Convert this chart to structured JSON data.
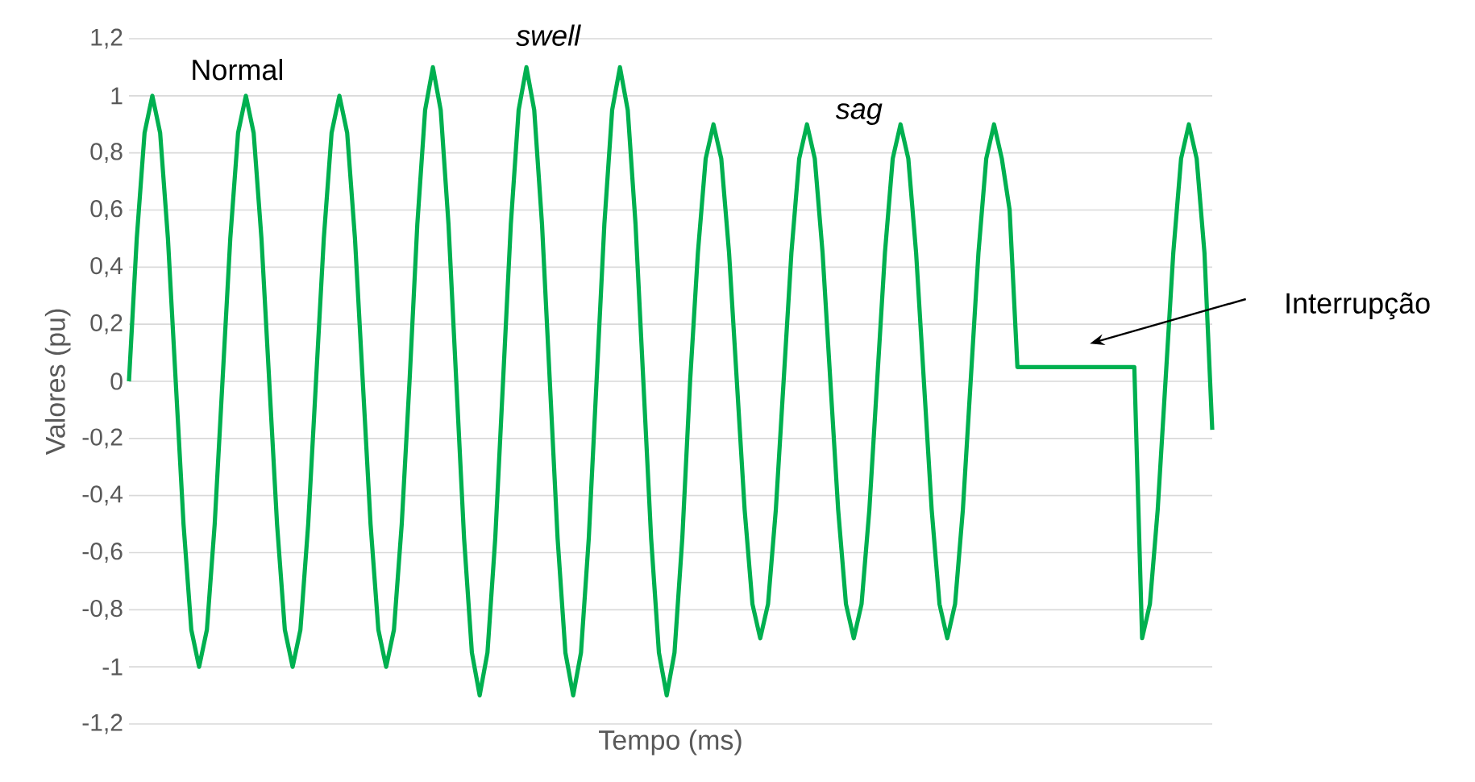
{
  "chart_data": {
    "type": "line",
    "xlabel": "Tempo (ms)",
    "ylabel": "Valores (pu)",
    "annotations": [
      "Normal",
      "swell",
      "sag",
      "Interrupção"
    ],
    "categories": [
      null,
      null,
      null,
      null,
      null,
      null,
      null,
      null,
      null,
      null,
      null,
      null,
      null,
      null,
      null,
      null,
      null,
      null,
      null,
      null,
      null,
      null,
      null,
      null,
      null,
      null,
      null,
      null,
      null,
      null,
      null,
      null,
      null,
      null,
      null,
      null,
      null,
      null,
      null,
      null,
      null,
      null,
      null,
      null,
      null,
      null,
      null,
      null,
      null,
      null,
      null,
      null,
      null,
      null,
      null,
      null,
      null,
      null,
      null,
      null,
      null,
      null,
      null,
      null,
      null,
      null,
      null,
      null,
      null,
      null,
      null,
      null,
      null,
      null,
      null,
      null,
      null,
      null,
      null,
      null,
      null,
      null,
      null,
      null,
      null,
      null,
      null,
      null,
      null,
      null,
      null,
      null,
      null,
      null,
      null,
      null,
      null,
      null,
      null,
      null,
      null,
      null,
      null,
      null,
      null,
      null,
      null,
      null,
      null,
      null,
      null,
      null,
      null,
      null,
      null,
      null,
      null,
      null,
      null,
      null,
      null,
      null,
      null,
      null,
      null,
      null,
      null,
      null,
      null,
      null,
      null,
      null,
      null,
      null,
      null,
      null,
      null,
      null,
      null,
      null
    ],
    "series": [
      {
        "color": "#00b050",
        "values": [
          0,
          0.5,
          0.87,
          1,
          0.87,
          0.5,
          0,
          -0.5,
          -0.87,
          -1,
          -0.87,
          -0.5,
          0,
          0.5,
          0.87,
          1,
          0.87,
          0.5,
          0,
          -0.5,
          -0.87,
          -1,
          -0.87,
          -0.5,
          0,
          0.5,
          0.87,
          1,
          0.87,
          0.5,
          0,
          -0.5,
          -0.87,
          -1,
          -0.87,
          -0.5,
          0,
          0.55,
          0.95,
          1.1,
          0.95,
          0.55,
          0,
          -0.55,
          -0.95,
          -1.1,
          -0.95,
          -0.55,
          0,
          0.55,
          0.95,
          1.1,
          0.95,
          0.55,
          0,
          -0.55,
          -0.95,
          -1.1,
          -0.95,
          -0.55,
          0,
          0.55,
          0.95,
          1.1,
          0.95,
          0.55,
          0,
          -0.55,
          -0.95,
          -1.1,
          -0.95,
          -0.55,
          0,
          0.45,
          0.78,
          0.9,
          0.78,
          0.45,
          0,
          -0.45,
          -0.78,
          -0.9,
          -0.78,
          -0.45,
          0,
          0.45,
          0.78,
          0.9,
          0.78,
          0.45,
          0,
          -0.45,
          -0.78,
          -0.9,
          -0.78,
          -0.45,
          0,
          0.45,
          0.78,
          0.9,
          0.78,
          0.45,
          0,
          -0.45,
          -0.78,
          -0.9,
          -0.78,
          -0.45,
          0,
          0.45,
          0.78,
          0.9,
          0.78,
          0.6,
          0.05,
          0.05,
          0.05,
          0.05,
          0.05,
          0.05,
          0.05,
          0.05,
          0.05,
          0.05,
          0.05,
          0.05,
          0.05,
          0.05,
          0.05,
          0.05,
          -0.9,
          -0.78,
          -0.45,
          0,
          0.45,
          0.78,
          0.9,
          0.78,
          0.45,
          -0.17
        ]
      }
    ],
    "ylim": [
      -1.2,
      1.2
    ],
    "yticks": [
      {
        "value": -1.2,
        "label": "-1,2"
      },
      -1,
      {
        "value": -0.8,
        "label": "-0,8"
      },
      {
        "value": -0.6,
        "label": "-0,6"
      },
      {
        "value": -0.4,
        "label": "-0,4"
      },
      {
        "value": -0.2,
        "label": "-0,2"
      },
      0,
      {
        "value": 0.2,
        "label": "0,2"
      },
      {
        "value": 0.4,
        "label": "0,4"
      },
      {
        "value": 0.6,
        "label": "0,6"
      },
      {
        "value": 0.8,
        "label": "0,8"
      },
      1,
      {
        "value": 1.2,
        "label": "1,2"
      }
    ],
    "grid": "y",
    "tick_labels": "y"
  }
}
